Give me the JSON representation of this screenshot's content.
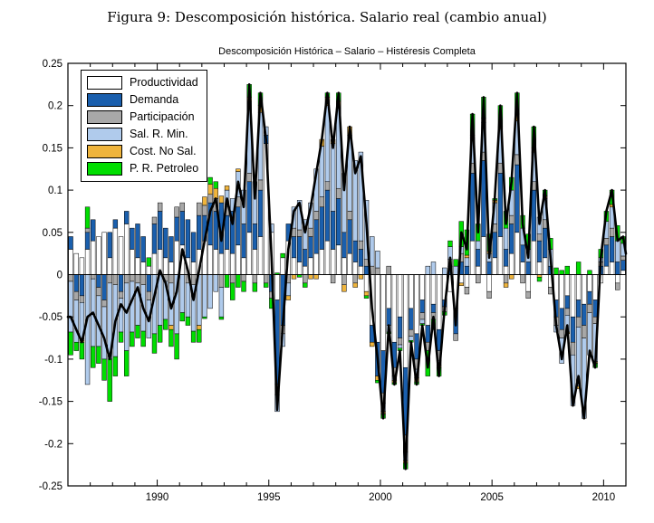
{
  "figure_caption": "Figura 9: Descomposición histórica. Salario real (cambio anual)",
  "chart_data": {
    "type": "bar",
    "subtype": "stacked-bars-with-total-line",
    "title": "Descomposición Histórica – Salario – Histéresis Completa",
    "x_range": [
      1986,
      2011
    ],
    "y_range": [
      -0.25,
      0.25
    ],
    "x_major_ticks": [
      1990,
      1995,
      2000,
      2005,
      2010
    ],
    "x_major_tick_labels": [
      "1990",
      "1995",
      "2000",
      "2005",
      "2010"
    ],
    "x_minor_tick_step_years": 1,
    "y_ticks": [
      0.25,
      0.2,
      0.15,
      0.1,
      0.05,
      0,
      -0.05,
      -0.1,
      -0.15,
      -0.2,
      -0.25
    ],
    "y_tick_labels": [
      "0.25",
      "0.2",
      "0.15",
      "0.1",
      "0.05",
      "0",
      "-0.05",
      "-0.1",
      "-0.15",
      "-0.2",
      "-0.25"
    ],
    "grid": false,
    "legend_position": "top-left-inside",
    "line_color": "#000000",
    "line_meaning": "total = sum of stacked components (quarterly, 1986Q1-2010Q4)",
    "quarters_start": 1986.0,
    "quarters_step": 0.25,
    "series": [
      {
        "name": "Productividad",
        "color": "#ffffff",
        "values": [
          0.03,
          0.025,
          0.02,
          0.03,
          0.04,
          0.045,
          0.05,
          0.02,
          0.055,
          0.045,
          0.06,
          0.03,
          0.02,
          0.015,
          0.01,
          0.025,
          0.03,
          0.02,
          0.015,
          0.04,
          0.035,
          0.02,
          0.015,
          0.03,
          0.04,
          0.035,
          0.03,
          0.025,
          0.03,
          0.025,
          0.035,
          0.02,
          0.05,
          0.03,
          0.045,
          0.155,
          0.05,
          -0.03,
          0.02,
          0.04,
          0.02,
          0.015,
          0.01,
          0.02,
          0.025,
          0.03,
          0.04,
          0.03,
          0.035,
          0.02,
          0.025,
          0.015,
          0.01,
          -0.02,
          -0.06,
          -0.08,
          -0.09,
          -0.04,
          -0.08,
          -0.05,
          -0.11,
          -0.04,
          -0.07,
          -0.03,
          -0.06,
          -0.035,
          -0.065,
          -0.03,
          -0.02,
          -0.04,
          -0.01,
          -0.015,
          0.04,
          0.01,
          0.045,
          -0.02,
          0.02,
          0.045,
          0.01,
          0.025,
          0.05,
          0.015,
          -0.02,
          0.04,
          0.015,
          0.02,
          -0.015,
          -0.03,
          -0.04,
          -0.025,
          -0.05,
          -0.03,
          -0.035,
          -0.02,
          -0.03,
          -0.01,
          0.01,
          0.015,
          -0.01,
          0.005
        ]
      },
      {
        "name": "Demanda",
        "color": "#1a5fad",
        "values": [
          0.015,
          -0.02,
          -0.025,
          0.02,
          0.025,
          -0.015,
          -0.03,
          0.03,
          0.01,
          -0.02,
          0.015,
          0.025,
          0.04,
          0.03,
          -0.02,
          0.035,
          0.045,
          0.035,
          0.03,
          0.028,
          0.04,
          0.045,
          0.035,
          0.04,
          0.03,
          0.05,
          0.045,
          0.06,
          0.04,
          0.05,
          0.045,
          0.04,
          0.06,
          0.03,
          0.055,
          0.01,
          -0.02,
          -0.1,
          -0.06,
          0.02,
          0.025,
          0.03,
          0.02,
          0.025,
          0.04,
          0.05,
          0.06,
          0.045,
          0.055,
          0.03,
          0.04,
          0.025,
          0.02,
          0.01,
          -0.02,
          -0.04,
          -0.05,
          -0.02,
          -0.03,
          -0.025,
          -0.08,
          -0.025,
          -0.03,
          -0.015,
          -0.02,
          -0.01,
          -0.025,
          -0.008,
          0.01,
          -0.03,
          0.015,
          0.01,
          0.08,
          0.02,
          0.09,
          0.015,
          0.03,
          0.075,
          0.02,
          0.035,
          0.08,
          0.02,
          0.015,
          0.06,
          0.025,
          0.035,
          0.01,
          -0.02,
          -0.025,
          -0.015,
          -0.03,
          -0.02,
          -0.025,
          -0.015,
          -0.02,
          0.01,
          0.025,
          0.03,
          0.015,
          0.012
        ]
      },
      {
        "name": "Participación",
        "color": "#a8a8a8",
        "values": [
          -0.008,
          -0.01,
          -0.008,
          0.005,
          -0.005,
          -0.01,
          -0.008,
          -0.01,
          -0.012,
          -0.008,
          -0.01,
          -0.008,
          -0.01,
          -0.012,
          -0.01,
          0.008,
          0.01,
          -0.008,
          -0.01,
          0.012,
          0.01,
          -0.01,
          -0.012,
          0.015,
          0.012,
          0.01,
          0.015,
          -0.015,
          0.01,
          -0.01,
          0.012,
          -0.008,
          0.01,
          -0.01,
          0.012,
          -0.01,
          -0.008,
          -0.012,
          -0.01,
          -0.01,
          0.01,
          0.008,
          -0.01,
          0.01,
          0.01,
          0.012,
          0.01,
          -0.01,
          0.012,
          -0.012,
          0.01,
          -0.01,
          0.01,
          0.008,
          0.01,
          0.008,
          -0.012,
          0.01,
          -0.01,
          -0.008,
          -0.02,
          -0.008,
          -0.012,
          -0.008,
          -0.01,
          -0.008,
          -0.012,
          -0.006,
          0.008,
          -0.008,
          0.01,
          -0.008,
          0.012,
          -0.01,
          0.01,
          -0.008,
          0.01,
          0.012,
          -0.01,
          0.01,
          0.012,
          -0.01,
          -0.008,
          0.01,
          0.008,
          0.01,
          -0.008,
          -0.01,
          -0.01,
          -0.008,
          -0.015,
          -0.012,
          -0.015,
          -0.01,
          -0.008,
          0.005,
          0.008,
          0.01,
          -0.008,
          0.005
        ]
      },
      {
        "name": "Sal. R. Min.",
        "color": "#b0cbec",
        "values": [
          -0.06,
          -0.05,
          -0.045,
          -0.13,
          -0.08,
          -0.06,
          -0.062,
          -0.09,
          -0.085,
          -0.04,
          -0.08,
          -0.06,
          -0.05,
          -0.055,
          -0.045,
          -0.07,
          -0.06,
          -0.045,
          -0.05,
          -0.07,
          -0.045,
          -0.04,
          -0.055,
          -0.06,
          -0.05,
          -0.04,
          -0.02,
          -0.035,
          0.02,
          0.015,
          0.03,
          0.04,
          0.085,
          0.05,
          0.08,
          0.01,
          0.01,
          -0.02,
          -0.015,
          -0.015,
          0.025,
          0.035,
          0.035,
          0.03,
          0.05,
          0.06,
          0.09,
          0.08,
          0.095,
          0.07,
          0.09,
          0.095,
          0.105,
          0.07,
          0.035,
          0.02,
          -0.01,
          -0.008,
          -0.005,
          -0.004,
          -0.01,
          -0.005,
          -0.01,
          -0.005,
          0.01,
          0.015,
          -0.005,
          0.008,
          0.015,
          0.01,
          0.008,
          0.01,
          0.03,
          0.01,
          0.035,
          0.01,
          0.025,
          0.04,
          0.025,
          0.03,
          0.04,
          0.02,
          0.015,
          0.035,
          0.02,
          0.025,
          0.02,
          -0.008,
          -0.03,
          -0.02,
          -0.06,
          -0.07,
          -0.095,
          -0.05,
          -0.045,
          0.005,
          0.02,
          0.025,
          0.025,
          0.015
        ]
      },
      {
        "name": "Cost. No Sal.",
        "color": "#efb43c",
        "values": [
          0,
          0,
          -0.002,
          0,
          0,
          0,
          0,
          0,
          0,
          0,
          0,
          0,
          0,
          0,
          0,
          0,
          0,
          0,
          -0.005,
          0,
          0,
          0,
          0,
          -0.005,
          0.01,
          0.012,
          0.012,
          0.008,
          0.005,
          0,
          0.003,
          0,
          0.005,
          0,
          0.008,
          0,
          0,
          0,
          0,
          -0.005,
          -0.005,
          0,
          0,
          -0.005,
          -0.005,
          0.008,
          0.01,
          0.005,
          0.008,
          -0.008,
          0.01,
          -0.005,
          -0.005,
          -0.005,
          -0.005,
          -0.005,
          -0.003,
          0,
          -0.003,
          0,
          -0.003,
          0,
          -0.005,
          0,
          0,
          0,
          -0.003,
          0,
          0,
          0,
          -0.003,
          0.003,
          0.003,
          0,
          0.005,
          0.003,
          0.003,
          0.003,
          -0.005,
          -0.005,
          0.008,
          0,
          0,
          0.005,
          -0.003,
          0.003,
          0,
          0,
          0,
          -0.002,
          0,
          -0.003,
          0,
          0,
          -0.002,
          0,
          0,
          0.003,
          0,
          0
        ]
      },
      {
        "name": "P. R. Petroleo",
        "color": "#00de00",
        "values": [
          -0.027,
          -0.01,
          -0.02,
          0.025,
          -0.025,
          -0.02,
          -0.025,
          -0.05,
          -0.023,
          -0.012,
          -0.03,
          -0.017,
          -0.015,
          -0.018,
          0.01,
          -0.023,
          -0.02,
          -0.012,
          -0.02,
          -0.03,
          -0.01,
          -0.01,
          -0.013,
          -0.015,
          -0.002,
          0.008,
          0.008,
          -0.003,
          -0.015,
          -0.02,
          -0.015,
          -0.012,
          0.015,
          -0.01,
          0.015,
          -0.005,
          -0.012,
          0.002,
          0.005,
          0,
          0,
          -0.003,
          -0.005,
          0,
          0,
          0,
          0.005,
          0,
          0.01,
          0,
          0,
          0,
          0,
          -0.003,
          0,
          -0.003,
          -0.005,
          -0.002,
          -0.002,
          -0.003,
          -0.007,
          -0.002,
          -0.003,
          -0.002,
          -0.03,
          -0.012,
          -0.01,
          -0.004,
          0.007,
          0.008,
          0.03,
          0.03,
          0.025,
          0.02,
          0.025,
          0.02,
          0.002,
          0.025,
          0.02,
          0.015,
          0.025,
          0.015,
          0.018,
          0.025,
          -0.005,
          0.007,
          0.013,
          0.008,
          0.005,
          0.01,
          0,
          0.015,
          0,
          0.005,
          -0.005,
          0.01,
          0.012,
          0.017,
          0.018,
          0.008
        ]
      }
    ]
  }
}
